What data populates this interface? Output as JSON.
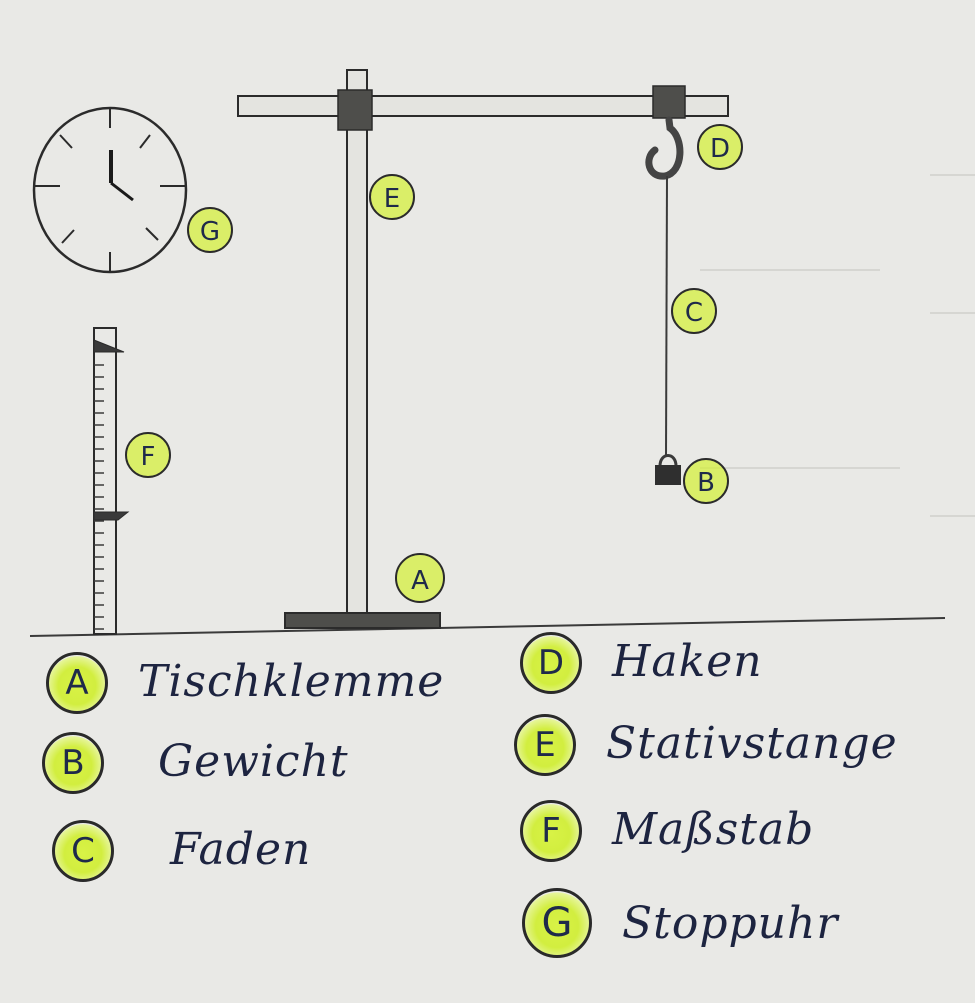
{
  "labels": {
    "a": "A",
    "b": "B",
    "c": "C",
    "d": "D",
    "e": "E",
    "f": "F",
    "g": "G"
  },
  "legend": [
    {
      "letter": "A",
      "text": "Tischklemme"
    },
    {
      "letter": "B",
      "text": "Gewicht"
    },
    {
      "letter": "C",
      "text": "Faden"
    },
    {
      "letter": "D",
      "text": "Haken"
    },
    {
      "letter": "E",
      "text": "Stativstange"
    },
    {
      "letter": "F",
      "text": "Maßstab"
    },
    {
      "letter": "G",
      "text": "Stoppuhr"
    }
  ],
  "colors": {
    "highlighter": "#d4ef3e",
    "pencil": "#2b2b2b",
    "ink": "#1d2440",
    "paper": "#e9e9e6"
  }
}
